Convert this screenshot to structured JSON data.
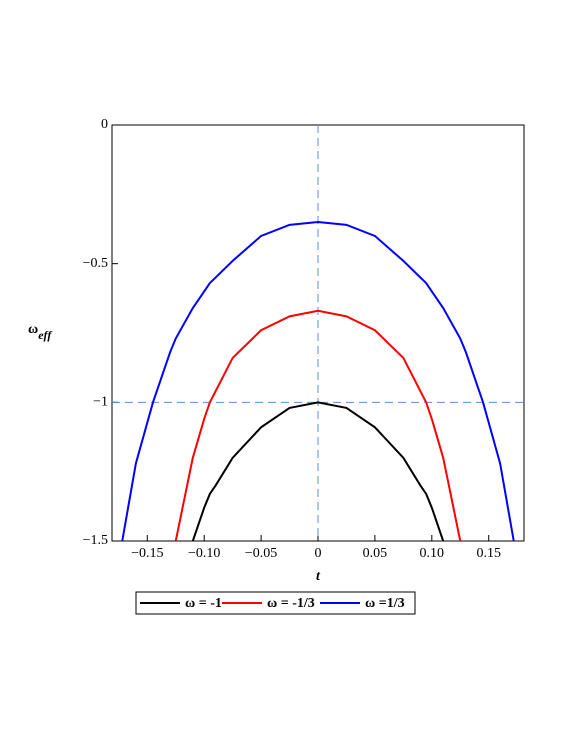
{
  "chart_data": {
    "type": "line",
    "xlabel": "t",
    "ylabel": {
      "text": "ω",
      "subscript": "eff"
    },
    "x": [
      -0.172,
      -0.16,
      -0.145,
      -0.13,
      -0.125,
      -0.11,
      -0.1,
      -0.095,
      -0.09,
      -0.075,
      -0.05,
      -0.025,
      0,
      0.025,
      0.05,
      0.075,
      0.09,
      0.095,
      0.1,
      0.11,
      0.125,
      0.13,
      0.145,
      0.16,
      0.172
    ],
    "series": [
      {
        "name": "ω = -1",
        "color": "#000000",
        "values": [
          null,
          null,
          null,
          null,
          null,
          -1.5,
          -1.38,
          -1.33,
          -1.3,
          -1.2,
          -1.09,
          -1.02,
          -1.0,
          -1.02,
          -1.09,
          -1.2,
          -1.3,
          -1.33,
          -1.38,
          -1.5,
          null,
          null,
          null,
          null,
          null
        ]
      },
      {
        "name": "ω = -1/3",
        "color": "#ff0000",
        "values": [
          null,
          null,
          null,
          null,
          -1.5,
          -1.2,
          -1.06,
          -1.0,
          -0.96,
          -0.84,
          -0.74,
          -0.69,
          -0.67,
          -0.69,
          -0.74,
          -0.84,
          -0.96,
          -1.0,
          -1.06,
          -1.2,
          -1.5,
          null,
          null,
          null,
          null
        ]
      },
      {
        "name": "ω =1/3",
        "color": "#0000ff",
        "values": [
          -1.5,
          -1.22,
          -1.0,
          -0.82,
          -0.77,
          -0.66,
          -0.6,
          -0.57,
          -0.55,
          -0.49,
          -0.4,
          -0.36,
          -0.35,
          -0.36,
          -0.4,
          -0.49,
          -0.55,
          -0.57,
          -0.6,
          -0.66,
          -0.77,
          -0.82,
          -1.0,
          -1.22,
          -1.5
        ]
      }
    ],
    "xlim": [
      -0.181,
      0.181
    ],
    "ylim": [
      -1.5,
      0
    ],
    "xticks": [
      {
        "value": -0.15,
        "label": "−0.15"
      },
      {
        "value": -0.1,
        "label": "−0.10"
      },
      {
        "value": -0.05,
        "label": "−0.05"
      },
      0,
      0.05,
      {
        "value": 0.1,
        "label": "0.10"
      },
      0.15
    ],
    "yticks": [
      0,
      {
        "value": -0.5,
        "label": "−0.5"
      },
      {
        "value": -1,
        "label": "−1"
      },
      {
        "value": -1.5,
        "label": "−1.5"
      }
    ],
    "reference_lines": {
      "x": [
        0
      ],
      "y": [
        -1
      ],
      "color": "#5b8fd6"
    },
    "legend": "bottom"
  }
}
